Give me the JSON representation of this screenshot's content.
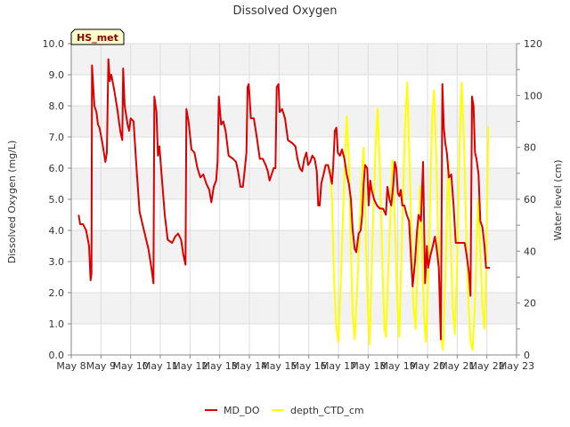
{
  "chart_data": {
    "type": "line",
    "title": "Dissolved Oxygen",
    "ylabel_left": "Dissolved Oxygen (mg/L)",
    "ylabel_right": "Water level (cm)",
    "xlabel": "",
    "badge": "HS_met",
    "x_ticks": [
      "May 8",
      "May 9",
      "May 10",
      "May 11",
      "May 12",
      "May 13",
      "May 14",
      "May 15",
      "May 16",
      "May 17",
      "May 18",
      "May 19",
      "May 20",
      "May 21",
      "May 22",
      "May 23"
    ],
    "y_left_ticks": [
      "0.0",
      "1.0",
      "2.0",
      "3.0",
      "4.0",
      "5.0",
      "6.0",
      "7.0",
      "8.0",
      "9.0",
      "10.0"
    ],
    "y_right_ticks": [
      "0",
      "20",
      "40",
      "60",
      "80",
      "100",
      "120"
    ],
    "ylim_left": [
      0,
      10
    ],
    "ylim_right": [
      0,
      120
    ],
    "grid": true,
    "legend_position": "bottom-center",
    "colors": {
      "band": "#f2f2f2",
      "grid": "#dddddd",
      "md_do": "#dd0000",
      "depth": "#ffff00",
      "badge_bg": "#ffffcc",
      "badge_text": "#880000"
    },
    "series": [
      {
        "name": "MD_DO",
        "axis": "left",
        "points": [
          [
            8.25,
            4.5
          ],
          [
            8.3,
            4.2
          ],
          [
            8.4,
            4.2
          ],
          [
            8.5,
            4.0
          ],
          [
            8.6,
            3.5
          ],
          [
            8.65,
            2.4
          ],
          [
            8.68,
            2.6
          ],
          [
            8.7,
            9.3
          ],
          [
            8.78,
            8.0
          ],
          [
            8.85,
            7.8
          ],
          [
            8.9,
            7.4
          ],
          [
            8.95,
            7.3
          ],
          [
            9.05,
            6.8
          ],
          [
            9.15,
            6.2
          ],
          [
            9.2,
            6.5
          ],
          [
            9.25,
            9.5
          ],
          [
            9.3,
            8.8
          ],
          [
            9.35,
            9.0
          ],
          [
            9.45,
            8.5
          ],
          [
            9.55,
            7.9
          ],
          [
            9.65,
            7.2
          ],
          [
            9.72,
            6.9
          ],
          [
            9.75,
            9.2
          ],
          [
            9.8,
            8.0
          ],
          [
            9.9,
            7.4
          ],
          [
            9.95,
            7.2
          ],
          [
            10.0,
            7.6
          ],
          [
            10.1,
            7.5
          ],
          [
            10.2,
            6.0
          ],
          [
            10.3,
            4.6
          ],
          [
            10.4,
            4.2
          ],
          [
            10.5,
            3.8
          ],
          [
            10.6,
            3.4
          ],
          [
            10.7,
            2.8
          ],
          [
            10.77,
            2.3
          ],
          [
            10.8,
            8.3
          ],
          [
            10.87,
            7.8
          ],
          [
            10.92,
            6.4
          ],
          [
            10.97,
            6.7
          ],
          [
            11.05,
            5.7
          ],
          [
            11.15,
            4.5
          ],
          [
            11.25,
            3.7
          ],
          [
            11.4,
            3.6
          ],
          [
            11.5,
            3.8
          ],
          [
            11.6,
            3.9
          ],
          [
            11.7,
            3.7
          ],
          [
            11.78,
            3.2
          ],
          [
            11.85,
            2.9
          ],
          [
            11.88,
            7.9
          ],
          [
            11.95,
            7.5
          ],
          [
            12.05,
            6.6
          ],
          [
            12.15,
            6.5
          ],
          [
            12.25,
            6.0
          ],
          [
            12.35,
            5.7
          ],
          [
            12.45,
            5.8
          ],
          [
            12.55,
            5.5
          ],
          [
            12.65,
            5.3
          ],
          [
            12.72,
            4.9
          ],
          [
            12.8,
            5.4
          ],
          [
            12.88,
            5.6
          ],
          [
            12.93,
            6.2
          ],
          [
            12.97,
            8.3
          ],
          [
            13.05,
            7.4
          ],
          [
            13.12,
            7.5
          ],
          [
            13.2,
            7.2
          ],
          [
            13.3,
            6.4
          ],
          [
            13.45,
            6.3
          ],
          [
            13.55,
            6.2
          ],
          [
            13.62,
            5.9
          ],
          [
            13.7,
            5.4
          ],
          [
            13.78,
            5.4
          ],
          [
            13.85,
            6.0
          ],
          [
            13.9,
            6.5
          ],
          [
            13.94,
            8.6
          ],
          [
            13.98,
            8.7
          ],
          [
            14.05,
            7.6
          ],
          [
            14.15,
            7.6
          ],
          [
            14.25,
            7.0
          ],
          [
            14.35,
            6.3
          ],
          [
            14.45,
            6.3
          ],
          [
            14.55,
            6.1
          ],
          [
            14.62,
            5.9
          ],
          [
            14.68,
            5.6
          ],
          [
            14.75,
            5.8
          ],
          [
            14.82,
            6.0
          ],
          [
            14.88,
            6.0
          ],
          [
            14.92,
            8.6
          ],
          [
            14.98,
            8.7
          ],
          [
            15.02,
            7.8
          ],
          [
            15.1,
            7.9
          ],
          [
            15.2,
            7.6
          ],
          [
            15.3,
            6.9
          ],
          [
            15.45,
            6.8
          ],
          [
            15.55,
            6.7
          ],
          [
            15.62,
            6.3
          ],
          [
            15.7,
            6.0
          ],
          [
            15.78,
            5.9
          ],
          [
            15.85,
            6.3
          ],
          [
            15.92,
            6.5
          ],
          [
            15.98,
            6.1
          ],
          [
            16.05,
            6.2
          ],
          [
            16.12,
            6.4
          ],
          [
            16.2,
            6.3
          ],
          [
            16.27,
            5.9
          ],
          [
            16.32,
            4.8
          ],
          [
            16.37,
            4.8
          ],
          [
            16.42,
            5.5
          ],
          [
            16.5,
            5.8
          ],
          [
            16.57,
            6.1
          ],
          [
            16.65,
            6.1
          ],
          [
            16.72,
            5.8
          ],
          [
            16.78,
            5.5
          ],
          [
            16.82,
            6.0
          ],
          [
            16.88,
            7.2
          ],
          [
            16.93,
            7.3
          ],
          [
            16.98,
            6.5
          ],
          [
            17.05,
            6.4
          ],
          [
            17.12,
            6.6
          ],
          [
            17.2,
            6.3
          ],
          [
            17.28,
            5.8
          ],
          [
            17.35,
            5.5
          ],
          [
            17.42,
            5.0
          ],
          [
            17.48,
            4.0
          ],
          [
            17.55,
            3.4
          ],
          [
            17.6,
            3.3
          ],
          [
            17.68,
            3.9
          ],
          [
            17.75,
            4.0
          ],
          [
            17.8,
            4.5
          ],
          [
            17.85,
            5.5
          ],
          [
            17.9,
            6.1
          ],
          [
            17.97,
            6.0
          ],
          [
            18.02,
            4.8
          ],
          [
            18.07,
            5.6
          ],
          [
            18.12,
            5.3
          ],
          [
            18.2,
            5.0
          ],
          [
            18.3,
            4.8
          ],
          [
            18.4,
            4.7
          ],
          [
            18.5,
            4.7
          ],
          [
            18.55,
            4.6
          ],
          [
            18.6,
            4.5
          ],
          [
            18.65,
            5.4
          ],
          [
            18.72,
            5.0
          ],
          [
            18.78,
            4.8
          ],
          [
            18.85,
            5.5
          ],
          [
            18.9,
            6.2
          ],
          [
            18.95,
            6.0
          ],
          [
            19.0,
            5.2
          ],
          [
            19.05,
            5.1
          ],
          [
            19.1,
            5.3
          ],
          [
            19.15,
            4.8
          ],
          [
            19.22,
            4.8
          ],
          [
            19.3,
            4.5
          ],
          [
            19.38,
            4.3
          ],
          [
            19.45,
            3.0
          ],
          [
            19.5,
            2.2
          ],
          [
            19.58,
            3.0
          ],
          [
            19.65,
            4.0
          ],
          [
            19.7,
            4.5
          ],
          [
            19.78,
            4.3
          ],
          [
            19.85,
            6.2
          ],
          [
            19.92,
            2.3
          ],
          [
            19.98,
            3.5
          ],
          [
            20.02,
            2.8
          ],
          [
            20.1,
            3.2
          ],
          [
            20.18,
            3.5
          ],
          [
            20.25,
            3.8
          ],
          [
            20.3,
            3.5
          ],
          [
            20.38,
            2.8
          ],
          [
            20.45,
            0.5
          ],
          [
            20.5,
            8.7
          ],
          [
            20.55,
            7.3
          ],
          [
            20.6,
            6.8
          ],
          [
            20.65,
            6.5
          ],
          [
            20.72,
            5.7
          ],
          [
            20.8,
            5.8
          ],
          [
            20.88,
            4.8
          ],
          [
            20.95,
            3.6
          ],
          [
            21.05,
            3.6
          ],
          [
            21.15,
            3.6
          ],
          [
            21.25,
            3.6
          ],
          [
            21.32,
            3.2
          ],
          [
            21.4,
            2.6
          ],
          [
            21.45,
            1.9
          ],
          [
            21.5,
            8.3
          ],
          [
            21.55,
            8.0
          ],
          [
            21.6,
            6.5
          ],
          [
            21.65,
            6.3
          ],
          [
            21.72,
            5.8
          ],
          [
            21.78,
            4.3
          ],
          [
            21.85,
            4.1
          ],
          [
            21.92,
            3.5
          ],
          [
            21.97,
            2.8
          ],
          [
            22.05,
            2.8
          ],
          [
            22.1,
            2.8
          ]
        ]
      },
      {
        "name": "depth_CTD_cm",
        "axis": "right",
        "points": [
          [
            16.72,
            72
          ],
          [
            16.78,
            60
          ],
          [
            16.85,
            30
          ],
          [
            16.92,
            12
          ],
          [
            17.0,
            5
          ],
          [
            17.1,
            35
          ],
          [
            17.2,
            70
          ],
          [
            17.28,
            92
          ],
          [
            17.35,
            75
          ],
          [
            17.42,
            40
          ],
          [
            17.48,
            15
          ],
          [
            17.55,
            6
          ],
          [
            17.65,
            30
          ],
          [
            17.75,
            60
          ],
          [
            17.85,
            80
          ],
          [
            17.92,
            45
          ],
          [
            17.98,
            20
          ],
          [
            18.05,
            4
          ],
          [
            18.15,
            45
          ],
          [
            18.25,
            80
          ],
          [
            18.32,
            95
          ],
          [
            18.4,
            70
          ],
          [
            18.48,
            35
          ],
          [
            18.55,
            10
          ],
          [
            18.6,
            7
          ],
          [
            18.72,
            45
          ],
          [
            18.82,
            75
          ],
          [
            18.92,
            45
          ],
          [
            18.98,
            20
          ],
          [
            19.05,
            7
          ],
          [
            19.15,
            50
          ],
          [
            19.25,
            90
          ],
          [
            19.32,
            105
          ],
          [
            19.38,
            80
          ],
          [
            19.45,
            50
          ],
          [
            19.52,
            20
          ],
          [
            19.6,
            10
          ],
          [
            19.68,
            40
          ],
          [
            19.75,
            65
          ],
          [
            19.82,
            40
          ],
          [
            19.88,
            15
          ],
          [
            19.95,
            5
          ],
          [
            20.05,
            40
          ],
          [
            20.15,
            90
          ],
          [
            20.22,
            102
          ],
          [
            20.3,
            75
          ],
          [
            20.38,
            35
          ],
          [
            20.45,
            8
          ],
          [
            20.52,
            2
          ],
          [
            20.6,
            30
          ],
          [
            20.7,
            75
          ],
          [
            20.78,
            45
          ],
          [
            20.85,
            18
          ],
          [
            20.92,
            8
          ],
          [
            21.0,
            35
          ],
          [
            21.08,
            80
          ],
          [
            21.15,
            105
          ],
          [
            21.22,
            85
          ],
          [
            21.3,
            50
          ],
          [
            21.38,
            20
          ],
          [
            21.45,
            5
          ],
          [
            21.52,
            2
          ],
          [
            21.6,
            20
          ],
          [
            21.7,
            60
          ],
          [
            21.78,
            40
          ],
          [
            21.85,
            18
          ],
          [
            21.92,
            10
          ],
          [
            21.98,
            35
          ],
          [
            22.05,
            88
          ]
        ]
      }
    ]
  }
}
